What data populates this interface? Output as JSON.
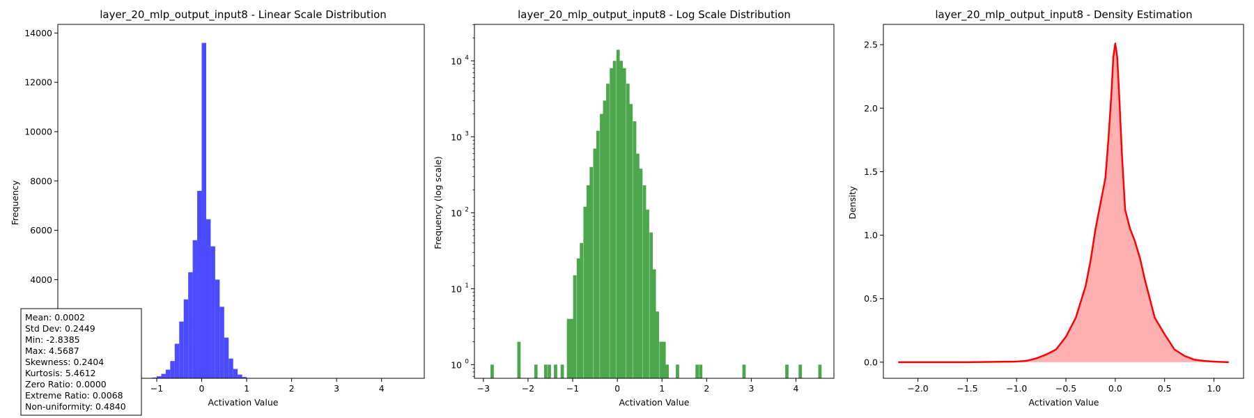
{
  "chart_data": [
    {
      "type": "bar",
      "title": "layer_20_mlp_output_input8 - Linear Scale Distribution",
      "xlabel": "Activation Value",
      "ylabel": "Frequency",
      "xlim": [
        -3.2,
        4.95
      ],
      "ylim": [
        0,
        14350
      ],
      "xticks": [
        -1,
        0,
        1,
        2,
        3,
        4
      ],
      "xtick_labels": [
        "−1",
        "0",
        "1",
        "2",
        "3",
        "4"
      ],
      "yticks": [
        4000,
        6000,
        8000,
        10000,
        12000,
        14000
      ],
      "ytick_labels": [
        "4000",
        "6000",
        "8000",
        "10000",
        "12000",
        "14000"
      ],
      "color": "#4b4bff",
      "bin_edges_start": -1.1,
      "bin_width": 0.1,
      "values": [
        30,
        80,
        180,
        350,
        700,
        1400,
        2300,
        3200,
        4300,
        5600,
        7600,
        13600,
        6450,
        5350,
        4000,
        2900,
        1650,
        800,
        380,
        150,
        50,
        10
      ],
      "stats_box": [
        "Mean: 0.0002",
        "Std Dev: 0.2449",
        "Min: -2.8385",
        "Max: 4.5687",
        "Skewness: 0.2404",
        "Kurtosis: 5.4612",
        "Zero Ratio: 0.0000",
        "Extreme Ratio: 0.0068",
        "Non-uniformity: 0.4840"
      ]
    },
    {
      "type": "bar",
      "scale": "log",
      "title": "layer_20_mlp_output_input8 - Log Scale Distribution",
      "xlabel": "Activation Value",
      "ylabel": "Frequency (log scale)",
      "xlim": [
        -3.2,
        4.85
      ],
      "ylim_log10": [
        -0.18,
        4.48
      ],
      "xticks": [
        -3,
        -2,
        -1,
        0,
        1,
        2,
        3,
        4
      ],
      "xtick_labels": [
        "−3",
        "−2",
        "−1",
        "0",
        "1",
        "2",
        "3",
        "4"
      ],
      "yticks_log10": [
        0,
        1,
        2,
        3,
        4
      ],
      "ytick_base": "10",
      "ytick_exponents": [
        "0",
        "1",
        "2",
        "3",
        "4"
      ],
      "color": "#4ca64c",
      "bin_width": 0.0741,
      "bars": [
        [
          -2.84,
          1
        ],
        [
          -2.24,
          2
        ],
        [
          -1.86,
          1
        ],
        [
          -1.64,
          1
        ],
        [
          -1.56,
          1
        ],
        [
          -1.42,
          1
        ],
        [
          -1.27,
          1
        ],
        [
          -1.13,
          4
        ],
        [
          -1.06,
          4
        ],
        [
          -0.99,
          15
        ],
        [
          -0.91,
          25
        ],
        [
          -0.84,
          40
        ],
        [
          -0.76,
          120
        ],
        [
          -0.69,
          230
        ],
        [
          -0.62,
          400
        ],
        [
          -0.54,
          700
        ],
        [
          -0.47,
          1200
        ],
        [
          -0.39,
          2000
        ],
        [
          -0.32,
          3000
        ],
        [
          -0.25,
          5000
        ],
        [
          -0.17,
          8000
        ],
        [
          -0.1,
          10000
        ],
        [
          -0.02,
          14000
        ],
        [
          0.05,
          10000
        ],
        [
          0.12,
          8000
        ],
        [
          0.2,
          5000
        ],
        [
          0.27,
          2700
        ],
        [
          0.35,
          1600
        ],
        [
          0.42,
          600
        ],
        [
          0.49,
          380
        ],
        [
          0.57,
          230
        ],
        [
          0.64,
          110
        ],
        [
          0.72,
          55
        ],
        [
          0.79,
          18
        ],
        [
          0.86,
          5
        ],
        [
          0.94,
          2
        ],
        [
          1.01,
          2
        ],
        [
          1.08,
          1
        ],
        [
          1.31,
          1
        ],
        [
          1.75,
          1
        ],
        [
          1.83,
          1
        ],
        [
          2.8,
          1
        ],
        [
          3.76,
          1
        ],
        [
          4.06,
          1
        ],
        [
          4.5,
          1
        ]
      ]
    },
    {
      "type": "area",
      "title": "layer_20_mlp_output_input8 - Density Estimation",
      "xlabel": "Activation Value",
      "ylabel": "Density",
      "xlim": [
        -2.35,
        1.3
      ],
      "ylim": [
        -0.127,
        2.66
      ],
      "xticks": [
        -2.0,
        -1.5,
        -1.0,
        -0.5,
        0.0,
        0.5,
        1.0
      ],
      "xtick_labels": [
        "−2.0",
        "−1.5",
        "−1.0",
        "−0.5",
        "0.0",
        "0.5",
        "1.0"
      ],
      "yticks": [
        0.0,
        0.5,
        1.0,
        1.5,
        2.0,
        2.5
      ],
      "ytick_labels": [
        "0.0",
        "0.5",
        "1.0",
        "1.5",
        "2.0",
        "2.5"
      ],
      "line_color": "#ff0000",
      "fill_color": "#ffb1b1",
      "x": [
        -2.2,
        -1.5,
        -1.0,
        -0.9,
        -0.8,
        -0.7,
        -0.6,
        -0.5,
        -0.4,
        -0.3,
        -0.25,
        -0.2,
        -0.15,
        -0.1,
        -0.07,
        -0.04,
        -0.02,
        0.0,
        0.02,
        0.04,
        0.07,
        0.1,
        0.15,
        0.2,
        0.25,
        0.3,
        0.4,
        0.5,
        0.6,
        0.7,
        0.8,
        0.9,
        1.0,
        1.15
      ],
      "y": [
        0.0,
        0.0,
        0.005,
        0.01,
        0.03,
        0.06,
        0.1,
        0.2,
        0.35,
        0.6,
        0.8,
        1.05,
        1.25,
        1.45,
        1.75,
        2.1,
        2.4,
        2.51,
        2.4,
        2.1,
        1.6,
        1.2,
        1.05,
        0.95,
        0.82,
        0.65,
        0.35,
        0.22,
        0.1,
        0.05,
        0.02,
        0.01,
        0.004,
        0.0
      ]
    }
  ]
}
